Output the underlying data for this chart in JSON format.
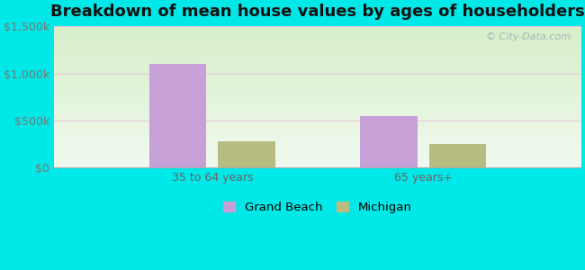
{
  "title": "Breakdown of mean house values by ages of householders",
  "categories": [
    "35 to 64 years",
    "65 years+"
  ],
  "grand_beach_values": [
    1100000,
    550000
  ],
  "michigan_values": [
    275000,
    250000
  ],
  "grand_beach_color": "#c8a0d8",
  "michigan_color": "#b8bc80",
  "background_color": "#00e8e8",
  "ylim": [
    0,
    1500000
  ],
  "yticks": [
    0,
    500000,
    1000000,
    1500000
  ],
  "ytick_labels": [
    "$0",
    "$500k",
    "$1,000k",
    "$1,500k"
  ],
  "bar_width": 0.12,
  "title_fontsize": 13,
  "tick_fontsize": 9,
  "legend_labels": [
    "Grand Beach",
    "Michigan"
  ],
  "watermark": "© City-Data.com",
  "group_positions": [
    0.28,
    0.72
  ]
}
